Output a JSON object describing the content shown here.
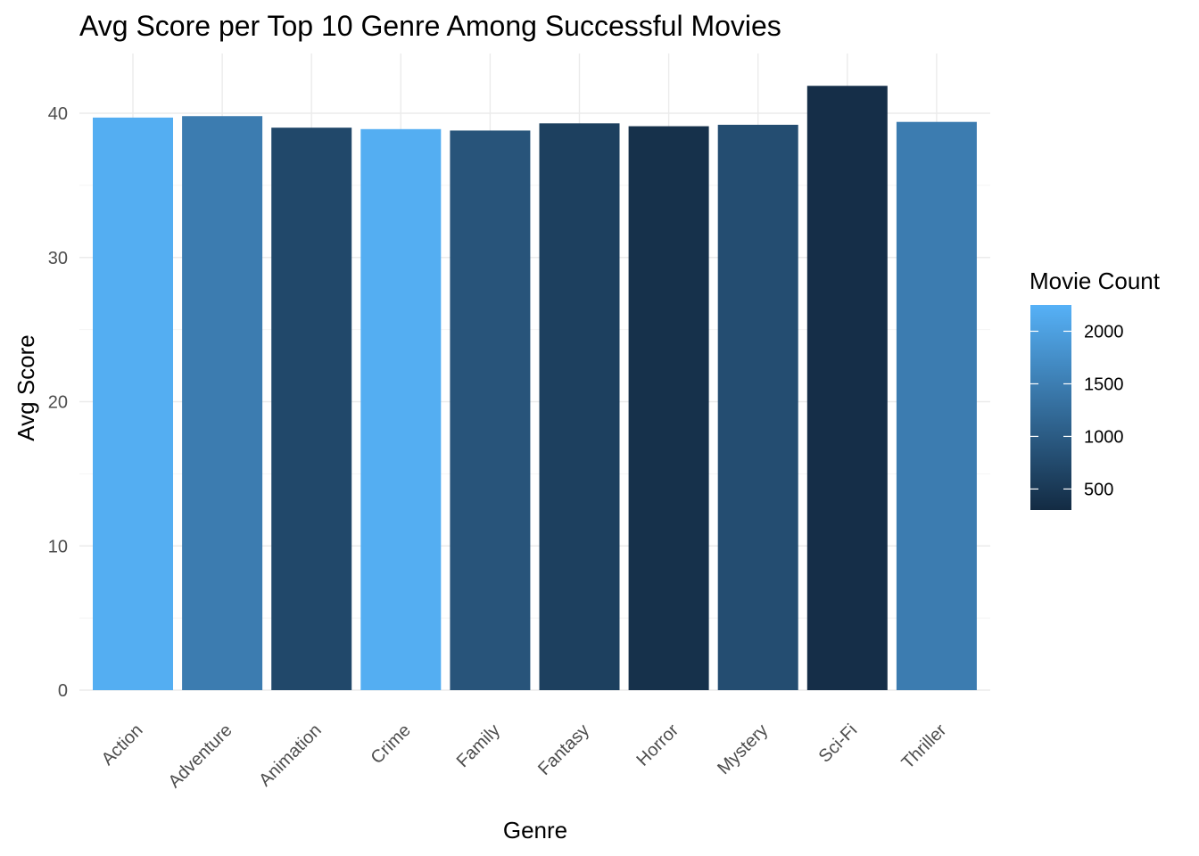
{
  "chart_data": {
    "type": "bar",
    "title": "Avg Score per Top 10 Genre Among Successful Movies",
    "xlabel": "Genre",
    "ylabel": "Avg Score",
    "categories": [
      "Action",
      "Adventure",
      "Animation",
      "Crime",
      "Family",
      "Fantasy",
      "Horror",
      "Mystery",
      "Sci-Fi",
      "Thriller"
    ],
    "values": [
      39.7,
      39.8,
      39.0,
      38.9,
      38.8,
      39.3,
      39.1,
      39.2,
      41.9,
      39.4
    ],
    "movie_count": [
      2200,
      1480,
      720,
      2200,
      900,
      600,
      390,
      800,
      350,
      1480
    ],
    "ylim": [
      0,
      44
    ],
    "yticks": [
      0,
      10,
      20,
      30,
      40
    ],
    "grid": true,
    "legend": {
      "title": "Movie Count",
      "placement": "right",
      "ticks": [
        2000,
        1500,
        1000,
        500
      ],
      "range": [
        300,
        2250
      ],
      "color_low": "#132b43",
      "color_high": "#56b1f7"
    }
  }
}
